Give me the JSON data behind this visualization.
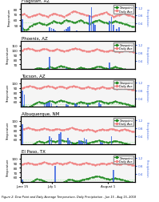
{
  "panels": [
    {
      "title": "Flagstaff, AZ",
      "temp_ylim": [
        40,
        90
      ],
      "precip_ylim": [
        0,
        1.4
      ],
      "temp_yticks": [
        50,
        60,
        70,
        80
      ],
      "precip_yticks": [
        0.4,
        0.8,
        1.2
      ],
      "dewpoint_ref": 55,
      "daily_avg_red": [
        70,
        71,
        68,
        66,
        65,
        67,
        68,
        69,
        70,
        71,
        70,
        69,
        68,
        67,
        66,
        68,
        70,
        72,
        71,
        70,
        69,
        68,
        67,
        66,
        68,
        70,
        72,
        74,
        76,
        75,
        74,
        73,
        72,
        71,
        70,
        69,
        68,
        67,
        66,
        67,
        68,
        69,
        70,
        71,
        72,
        73,
        74,
        72,
        70,
        68,
        66,
        67,
        68,
        69,
        70,
        72,
        71,
        70,
        69,
        68,
        67,
        66
      ],
      "dewpoint_green": [
        45,
        43,
        42,
        44,
        48,
        50,
        52,
        53,
        54,
        55,
        54,
        53,
        52,
        51,
        52,
        54,
        56,
        58,
        57,
        56,
        55,
        54,
        56,
        58,
        60,
        59,
        58,
        57,
        56,
        55,
        57,
        59,
        60,
        58,
        56,
        55,
        54,
        53,
        55,
        57,
        58,
        59,
        60,
        58,
        57,
        56,
        55,
        54,
        55,
        56,
        57,
        58,
        57,
        56,
        55,
        54,
        53,
        52,
        51,
        50,
        49,
        48
      ],
      "precip": [
        0.6,
        0,
        0,
        0,
        0,
        0,
        0,
        0,
        0,
        0,
        0,
        0,
        0,
        0,
        0,
        0.2,
        0.15,
        0.1,
        0.05,
        0,
        0,
        0,
        0,
        0.08,
        0.12,
        0.18,
        0.22,
        0,
        0,
        0,
        0.05,
        0,
        0,
        0,
        0,
        0,
        0,
        0.8,
        1.2,
        0.4,
        0.3,
        0,
        0,
        0,
        0,
        0,
        0,
        0,
        0.5,
        0.7,
        0.3,
        0,
        0.1,
        0.2,
        0,
        0,
        0,
        0,
        0,
        0,
        0,
        0
      ]
    },
    {
      "title": "Phoenix, AZ",
      "temp_ylim": [
        60,
        120
      ],
      "precip_ylim": [
        0,
        1.4
      ],
      "temp_yticks": [
        70,
        80,
        90,
        100,
        110
      ],
      "precip_yticks": [
        0.4,
        0.8,
        1.2
      ],
      "dewpoint_ref": 60,
      "daily_avg_red": [
        100,
        102,
        103,
        104,
        103,
        102,
        101,
        100,
        99,
        100,
        101,
        102,
        103,
        102,
        101,
        100,
        99,
        100,
        101,
        102,
        101,
        100,
        99,
        98,
        99,
        100,
        101,
        102,
        103,
        104,
        103,
        102,
        101,
        100,
        99,
        98,
        97,
        98,
        99,
        100,
        101,
        102,
        101,
        100,
        99,
        98,
        97,
        98,
        99,
        100,
        99,
        98,
        97,
        96,
        97,
        98,
        99,
        100,
        99,
        98,
        97,
        96
      ],
      "dewpoint_green": [
        58,
        57,
        56,
        55,
        54,
        56,
        58,
        60,
        61,
        62,
        61,
        60,
        59,
        60,
        62,
        64,
        63,
        62,
        61,
        63,
        65,
        66,
        65,
        64,
        63,
        62,
        61,
        60,
        59,
        58,
        60,
        62,
        63,
        62,
        61,
        60,
        59,
        60,
        61,
        62,
        63,
        64,
        65,
        64,
        63,
        62,
        61,
        60,
        61,
        62,
        63,
        64,
        63,
        62,
        61,
        60,
        59,
        58,
        57,
        56,
        55,
        54
      ],
      "precip": [
        0,
        0,
        0,
        0,
        0,
        0,
        0,
        0,
        0,
        0,
        0,
        0,
        0,
        0,
        0,
        0.6,
        0,
        0,
        0,
        0,
        0,
        0,
        0,
        0,
        0.05,
        0,
        0,
        0,
        0,
        0,
        0,
        0,
        0,
        0,
        0,
        0,
        0,
        0,
        0,
        0,
        0,
        0,
        0,
        0,
        0,
        0,
        0,
        0,
        0.3,
        0,
        0,
        0,
        0,
        0,
        0,
        0,
        0,
        0,
        0,
        0,
        0,
        0
      ]
    },
    {
      "title": "Tucson, AZ",
      "temp_ylim": [
        50,
        110
      ],
      "precip_ylim": [
        0,
        1.4
      ],
      "temp_yticks": [
        60,
        70,
        80,
        90,
        100
      ],
      "precip_yticks": [
        0.4,
        0.8,
        1.2
      ],
      "dewpoint_ref": 55,
      "daily_avg_red": [
        90,
        91,
        92,
        93,
        94,
        93,
        92,
        91,
        90,
        89,
        90,
        91,
        92,
        93,
        94,
        93,
        92,
        91,
        90,
        91,
        92,
        93,
        92,
        91,
        90,
        91,
        92,
        93,
        94,
        93,
        92,
        91,
        90,
        89,
        90,
        91,
        92,
        91,
        90,
        89,
        88,
        89,
        90,
        91,
        92,
        91,
        90,
        89,
        90,
        91,
        90,
        89,
        88,
        89,
        90,
        91,
        90,
        89,
        88,
        87,
        86,
        85
      ],
      "dewpoint_green": [
        52,
        50,
        49,
        48,
        50,
        52,
        54,
        56,
        58,
        60,
        59,
        58,
        57,
        58,
        60,
        62,
        61,
        60,
        59,
        60,
        62,
        63,
        62,
        61,
        60,
        59,
        58,
        57,
        56,
        55,
        57,
        59,
        60,
        59,
        58,
        57,
        56,
        57,
        58,
        59,
        60,
        61,
        62,
        61,
        60,
        59,
        58,
        57,
        58,
        59,
        60,
        61,
        60,
        59,
        58,
        57,
        56,
        55,
        54,
        53,
        52,
        51
      ],
      "precip": [
        0.8,
        0.6,
        0,
        0,
        0,
        0,
        0,
        0,
        0,
        0,
        0,
        0,
        0.1,
        0.15,
        0.2,
        0.25,
        0.15,
        0,
        0,
        0.05,
        0,
        0,
        0,
        0,
        0.1,
        0.08,
        0,
        0,
        0,
        0.15,
        0.1,
        0.05,
        0,
        0,
        0,
        0,
        0.12,
        0,
        0,
        0,
        0,
        0,
        0.2,
        0.1,
        0,
        0,
        0,
        0,
        0,
        0,
        0,
        0,
        0,
        0,
        0,
        0,
        0,
        0,
        0,
        0,
        0,
        0
      ]
    },
    {
      "title": "Albuquerque, NM",
      "temp_ylim": [
        50,
        110
      ],
      "precip_ylim": [
        0,
        1.4
      ],
      "temp_yticks": [
        60,
        70,
        80,
        90,
        100
      ],
      "precip_yticks": [
        0.4,
        0.8,
        1.2
      ],
      "dewpoint_ref": 55,
      "daily_avg_red": [
        82,
        83,
        84,
        85,
        84,
        83,
        82,
        81,
        80,
        81,
        82,
        83,
        84,
        83,
        82,
        81,
        80,
        81,
        82,
        83,
        82,
        81,
        80,
        81,
        82,
        83,
        84,
        85,
        84,
        83,
        82,
        81,
        80,
        79,
        80,
        81,
        82,
        81,
        80,
        79,
        78,
        79,
        80,
        81,
        82,
        81,
        80,
        81,
        82,
        83,
        82,
        81,
        80,
        79,
        80,
        81,
        82,
        81,
        80,
        79,
        78,
        77
      ],
      "dewpoint_green": [
        48,
        46,
        45,
        44,
        46,
        48,
        50,
        52,
        54,
        56,
        55,
        54,
        53,
        54,
        56,
        58,
        57,
        56,
        55,
        56,
        58,
        59,
        58,
        57,
        56,
        55,
        54,
        53,
        52,
        51,
        53,
        55,
        56,
        55,
        54,
        53,
        52,
        53,
        54,
        55,
        56,
        57,
        58,
        57,
        56,
        55,
        54,
        53,
        54,
        55,
        56,
        57,
        56,
        55,
        54,
        53,
        52,
        51,
        50,
        49,
        48,
        47
      ],
      "precip": [
        1.0,
        0,
        0,
        0,
        0,
        0,
        0,
        0,
        0,
        0,
        0,
        0,
        0,
        0,
        0,
        0.4,
        0.3,
        0,
        0,
        0,
        0.5,
        0.6,
        0,
        0,
        0,
        0.3,
        0.2,
        0.1,
        0,
        0,
        0,
        0.2,
        0.15,
        0.1,
        0.3,
        0.25,
        0,
        0,
        0,
        0,
        0,
        0,
        0,
        0.1,
        0.05,
        0,
        0,
        0,
        0,
        0.4,
        0,
        0,
        0,
        0,
        0,
        0,
        0,
        0,
        0,
        0,
        0,
        0
      ]
    },
    {
      "title": "El Paso, TX",
      "temp_ylim": [
        50,
        110
      ],
      "precip_ylim": [
        0,
        1.4
      ],
      "temp_yticks": [
        60,
        70,
        80,
        90,
        100
      ],
      "precip_yticks": [
        0.4,
        0.8,
        1.2
      ],
      "dewpoint_ref": 55,
      "daily_avg_red": [
        88,
        89,
        90,
        91,
        90,
        89,
        88,
        87,
        88,
        89,
        90,
        91,
        92,
        91,
        90,
        89,
        88,
        89,
        90,
        91,
        90,
        89,
        88,
        89,
        90,
        91,
        92,
        91,
        90,
        89,
        88,
        87,
        88,
        89,
        90,
        91,
        90,
        89,
        88,
        87,
        86,
        87,
        88,
        89,
        90,
        89,
        88,
        89,
        90,
        91,
        90,
        89,
        88,
        87,
        88,
        89,
        90,
        89,
        88,
        87,
        86,
        85
      ],
      "dewpoint_green": [
        50,
        48,
        47,
        46,
        48,
        50,
        52,
        54,
        56,
        55,
        54,
        53,
        52,
        50,
        48,
        46,
        44,
        42,
        40,
        42,
        44,
        46,
        48,
        50,
        52,
        54,
        55,
        54,
        53,
        52,
        51,
        52,
        53,
        54,
        55,
        56,
        57,
        58,
        59,
        60,
        61,
        62,
        61,
        60,
        59,
        58,
        57,
        56,
        55,
        56,
        57,
        58,
        57,
        56,
        55,
        54,
        53,
        52,
        51,
        50,
        49,
        48
      ],
      "precip": [
        0.1,
        0,
        0,
        0,
        0,
        0,
        0,
        0,
        0,
        0,
        0,
        0,
        0,
        0,
        0,
        0,
        0,
        0,
        0.8,
        0,
        0,
        0,
        0,
        0,
        0,
        0,
        0,
        0,
        0,
        0,
        0,
        0,
        0,
        0,
        0,
        0,
        0,
        0,
        0,
        0,
        0,
        0,
        0,
        0,
        0,
        0,
        0,
        0,
        0,
        0,
        0.6,
        0,
        0,
        0,
        0,
        0,
        0,
        0,
        0,
        0,
        0,
        0,
        0
      ]
    }
  ],
  "n_days": 62,
  "xtick_positions": [
    0,
    16,
    31,
    47
  ],
  "xtick_labels": [
    "June 15",
    "July 1",
    "August 1"
  ],
  "xtick_positions_used": [
    0,
    16,
    47
  ],
  "figure_caption": "Figure 2: Dew Point and Daily Average Temperature, Daily Precipitation - Jun 15 - Aug 15, 2018",
  "red_color": "#f08080",
  "green_color": "#228B22",
  "bar_color": "#4169E1",
  "ref_line_color": "#90EE90",
  "bg_color": "#f5f5f5"
}
